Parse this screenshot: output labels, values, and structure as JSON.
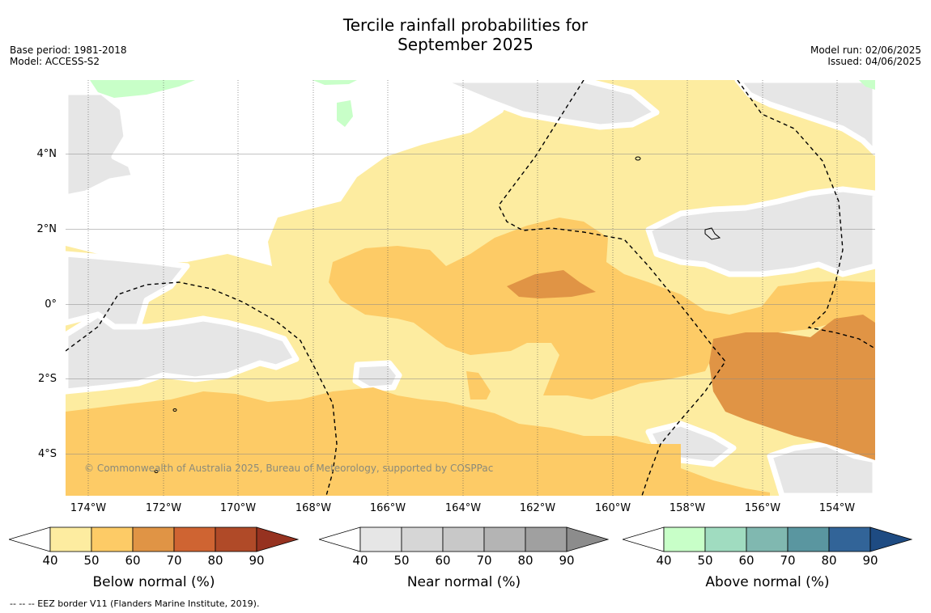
{
  "title": {
    "line1": "Tercile rainfall probabilities for",
    "line2": "September 2025"
  },
  "meta_left": {
    "base_period": "Base period: 1981-2018",
    "model": "Model: ACCESS-S2"
  },
  "meta_right": {
    "model_run": "Model run: 02/06/2025",
    "issued": "Issued: 04/06/2025"
  },
  "map": {
    "lat_labels": [
      "4°N",
      "2°N",
      "0°",
      "2°S",
      "4°S"
    ],
    "lon_labels": [
      "174°W",
      "172°W",
      "170°W",
      "168°W",
      "166°W",
      "164°W",
      "162°W",
      "160°W",
      "158°W",
      "156°W",
      "154°W"
    ],
    "copyright": "© Commonwealth of Australia 2025, Bureau of Meteorology, supported by COSPPac",
    "colors": {
      "below_40": "#fdeca0",
      "below_50": "#fdcb66",
      "below_60": "#e09445",
      "near_40": "#e6e6e6",
      "near_50": "#d6d6d6",
      "above_40": "#c8ffc8",
      "grid": "#888888",
      "eez": "#000000"
    }
  },
  "colorbars": [
    {
      "title": "Below normal (%)",
      "ticks": [
        "40",
        "50",
        "60",
        "70",
        "80",
        "90"
      ],
      "colors": [
        "#ffffff",
        "#fdeca0",
        "#fdcb66",
        "#e09445",
        "#cf6432",
        "#b04a28",
        "#963220"
      ]
    },
    {
      "title": "Near normal (%)",
      "ticks": [
        "40",
        "50",
        "60",
        "70",
        "80",
        "90"
      ],
      "colors": [
        "#ffffff",
        "#e6e6e6",
        "#d6d6d6",
        "#c8c8c8",
        "#b4b4b4",
        "#a0a0a0",
        "#8c8c8c"
      ]
    },
    {
      "title": "Above normal (%)",
      "ticks": [
        "40",
        "50",
        "60",
        "70",
        "80",
        "90"
      ],
      "colors": [
        "#ffffff",
        "#c8ffc8",
        "#a0dcc0",
        "#80b8b0",
        "#5a96a0",
        "#326498",
        "#1e4b82"
      ]
    }
  ],
  "footer": "-- -- -- EEZ border V11 (Flanders Marine Institute, 2019)."
}
